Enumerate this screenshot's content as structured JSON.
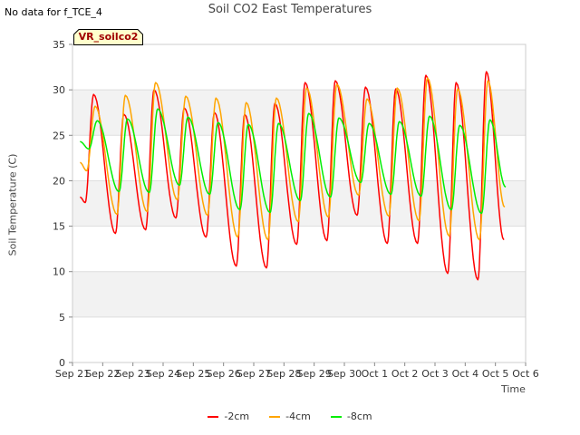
{
  "header": {
    "no_data_text": "No data for f_TCE_4",
    "title": "Soil CO2 East Temperatures"
  },
  "badge": {
    "text": "VR_soilco2",
    "fill": "#ffffcc",
    "text_color": "#a00000"
  },
  "legend": [
    {
      "label": "-2cm",
      "color": "#ff0000"
    },
    {
      "label": "-4cm",
      "color": "#ffa500"
    },
    {
      "label": "-8cm",
      "color": "#00ee00"
    }
  ],
  "chart_data": {
    "type": "line",
    "title": "Soil CO2 East Temperatures",
    "xlabel": "Time",
    "ylabel": "Soil Temperature (C)",
    "ylim": [
      0,
      35
    ],
    "yticks": [
      0,
      5,
      10,
      15,
      20,
      25,
      30,
      35
    ],
    "xlim": [
      "Sep 21",
      "Oct 6"
    ],
    "xticks": [
      "Sep 21",
      "Sep 22",
      "Sep 23",
      "Sep 24",
      "Sep 25",
      "Sep 26",
      "Sep 27",
      "Sep 28",
      "Sep 29",
      "Sep 30",
      "Oct 1",
      "Oct 2",
      "Oct 3",
      "Oct 4",
      "Oct 5",
      "Oct 6"
    ],
    "grid": "horizontal alternating bands",
    "legend_position": "bottom-center",
    "series": [
      {
        "name": "-2cm",
        "color": "#ff0000",
        "daily_max": [
          29.5,
          27.3,
          30.0,
          28.0,
          27.5,
          27.3,
          28.5,
          30.8,
          31.0,
          30.3,
          30.1,
          31.6,
          30.8,
          32.0
        ],
        "daily_min": [
          17.6,
          14.2,
          14.6,
          15.9,
          13.8,
          10.6,
          10.4,
          13.0,
          13.4,
          16.2,
          13.1,
          13.1,
          9.8,
          9.1
        ],
        "start_value": 18.2,
        "end_value": 13.5
      },
      {
        "name": "-4cm",
        "color": "#ffa500",
        "daily_max": [
          28.2,
          29.4,
          30.8,
          29.3,
          29.1,
          28.6,
          29.1,
          30.2,
          30.6,
          29.0,
          30.2,
          31.3,
          30.1,
          31.0
        ],
        "daily_min": [
          21.1,
          16.3,
          16.6,
          17.9,
          16.2,
          13.8,
          13.5,
          15.5,
          16.0,
          18.4,
          16.1,
          15.6,
          13.9,
          13.5
        ],
        "start_value": 22.0,
        "end_value": 17.1
      },
      {
        "name": "-8cm",
        "color": "#00ee00",
        "daily_max": [
          26.6,
          26.8,
          27.9,
          27.0,
          26.4,
          26.2,
          26.3,
          27.4,
          26.9,
          26.3,
          26.5,
          27.1,
          26.1,
          26.7
        ],
        "daily_min": [
          23.5,
          18.8,
          18.7,
          19.5,
          18.5,
          16.8,
          16.5,
          17.8,
          18.2,
          19.8,
          18.5,
          18.3,
          16.8,
          16.4
        ],
        "start_value": 24.3,
        "end_value": 19.3
      }
    ]
  }
}
